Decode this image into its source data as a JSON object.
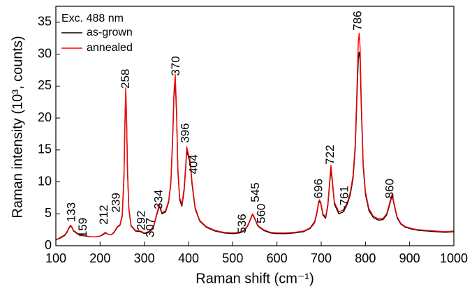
{
  "chart_data": {
    "type": "line",
    "x_label": "Raman shift (cm⁻¹)",
    "y_label": "Raman intensity (10³, counts)",
    "legend_title": "Exc. 488 nm",
    "legend": "upper left",
    "grid": false,
    "xlim": [
      100,
      1000
    ],
    "xticks": [
      100,
      200,
      300,
      400,
      500,
      600,
      700,
      800,
      900,
      1000
    ],
    "ylim": [
      0,
      37.5
    ],
    "yticks": [
      0,
      5,
      10,
      15,
      20,
      25,
      30,
      35
    ],
    "x": [
      100,
      110,
      120,
      126,
      130,
      133,
      136,
      140,
      150,
      159,
      170,
      180,
      190,
      200,
      206,
      212,
      218,
      225,
      232,
      239,
      245,
      250,
      254,
      256,
      258,
      260,
      262,
      265,
      270,
      280,
      292,
      300,
      307,
      315,
      322,
      328,
      334,
      340,
      348,
      355,
      360,
      364,
      367,
      370,
      373,
      376,
      380,
      385,
      390,
      394,
      396,
      399,
      402,
      404,
      408,
      415,
      425,
      440,
      460,
      480,
      500,
      515,
      525,
      532,
      536,
      541,
      545,
      550,
      556,
      560,
      570,
      585,
      600,
      620,
      640,
      660,
      675,
      685,
      690,
      694,
      696,
      699,
      704,
      710,
      715,
      719,
      722,
      725,
      730,
      740,
      750,
      757,
      761,
      766,
      772,
      777,
      781,
      784,
      786,
      788,
      791,
      795,
      800,
      808,
      818,
      830,
      840,
      848,
      854,
      858,
      860,
      862,
      866,
      872,
      880,
      890,
      905,
      920,
      940,
      960,
      980,
      1000
    ],
    "series": [
      {
        "name": "as-grown",
        "color": "#000000",
        "values": [
          0.9,
          1.2,
          1.6,
          2.2,
          2.8,
          3.1,
          2.9,
          2.3,
          1.8,
          1.6,
          1.5,
          1.4,
          1.4,
          1.5,
          1.7,
          2.0,
          1.8,
          1.7,
          2.1,
          2.9,
          3.2,
          4.6,
          10.5,
          18.5,
          24.0,
          19.5,
          11.6,
          5.8,
          3.1,
          2.3,
          2.2,
          1.9,
          2.0,
          2.4,
          3.2,
          4.8,
          6.2,
          5.0,
          5.3,
          6.8,
          9.7,
          16.3,
          23.2,
          26.0,
          20.5,
          11.6,
          7.2,
          6.2,
          8.6,
          12.5,
          15.0,
          14.1,
          13.4,
          12.8,
          9.6,
          5.8,
          3.9,
          2.9,
          2.3,
          2.0,
          1.9,
          2.0,
          2.3,
          2.9,
          3.4,
          4.3,
          4.9,
          4.2,
          3.2,
          2.9,
          2.4,
          2.0,
          1.9,
          1.9,
          2.0,
          2.2,
          2.7,
          3.6,
          5.0,
          6.6,
          7.0,
          6.6,
          4.8,
          4.3,
          6.2,
          9.6,
          12.0,
          10.1,
          6.5,
          5.0,
          5.3,
          6.2,
          6.9,
          8.1,
          10.5,
          15.2,
          23.5,
          29.5,
          30.3,
          29,
          21,
          12.4,
          8.1,
          5.5,
          4.4,
          4.0,
          4.1,
          4.8,
          6.2,
          7.3,
          7.7,
          7.4,
          6.1,
          4.3,
          3.4,
          2.9,
          2.6,
          2.4,
          2.3,
          2.2,
          2.1,
          2.2
        ]
      },
      {
        "name": "annealed",
        "color": "#ff0000",
        "values": [
          0.9,
          1.3,
          1.7,
          2.3,
          2.9,
          3.2,
          3.0,
          2.4,
          1.9,
          1.7,
          1.5,
          1.4,
          1.4,
          1.5,
          1.8,
          2.1,
          1.8,
          1.7,
          2.2,
          3.0,
          3.3,
          4.8,
          11,
          19,
          24.7,
          20,
          12,
          6,
          3.2,
          2.4,
          2.3,
          2.0,
          2.1,
          2.5,
          3.3,
          5.0,
          6.4,
          5.2,
          5.5,
          7,
          10,
          17,
          24,
          26.8,
          21,
          12,
          7.5,
          6.5,
          9,
          13,
          15.5,
          14.5,
          13.8,
          13.2,
          10,
          6,
          4,
          3,
          2.4,
          2.1,
          2.0,
          2.1,
          2.4,
          3.0,
          3.5,
          4.4,
          5.0,
          4.3,
          3.3,
          3.0,
          2.5,
          2.1,
          2.0,
          2.0,
          2.1,
          2.3,
          2.8,
          3.8,
          5.2,
          6.8,
          7.2,
          6.8,
          5.0,
          4.5,
          6.5,
          10,
          12.6,
          10.5,
          6.8,
          5.3,
          5.6,
          6.5,
          7.2,
          8.5,
          11,
          16,
          25,
          32,
          33.3,
          31,
          22,
          13,
          8.5,
          5.8,
          4.6,
          4.2,
          4.3,
          5.0,
          6.5,
          7.6,
          8.0,
          7.7,
          6.3,
          4.5,
          3.5,
          3.0,
          2.7,
          2.5,
          2.4,
          2.3,
          2.2,
          2.3
        ]
      }
    ],
    "annotations": [
      {
        "text": "133",
        "x": 136,
        "y": 3.7
      },
      {
        "text": "159",
        "x": 162,
        "y": 1.3
      },
      {
        "text": "212",
        "x": 210,
        "y": 3.3
      },
      {
        "text": "239",
        "x": 237,
        "y": 5.2
      },
      {
        "text": "258",
        "x": 259,
        "y": 24.6
      },
      {
        "text": "292",
        "x": 294,
        "y": 2.4
      },
      {
        "text": "307",
        "x": 315,
        "y": 1.3
      },
      {
        "text": "334",
        "x": 334,
        "y": 5.7
      },
      {
        "text": "370",
        "x": 372,
        "y": 26.6
      },
      {
        "text": "396",
        "x": 394,
        "y": 16.1
      },
      {
        "text": "404",
        "x": 413,
        "y": 11.2
      },
      {
        "text": "536",
        "x": 522,
        "y": 1.9
      },
      {
        "text": "545",
        "x": 552,
        "y": 6.8
      },
      {
        "text": "560",
        "x": 566,
        "y": 3.5
      },
      {
        "text": "696",
        "x": 695,
        "y": 7.4
      },
      {
        "text": "722",
        "x": 721,
        "y": 12.7
      },
      {
        "text": "~761",
        "x": 754,
        "y": 5.2
      },
      {
        "text": "786",
        "x": 784,
        "y": 33.7
      },
      {
        "text": "860",
        "x": 856,
        "y": 7.4
      }
    ]
  }
}
